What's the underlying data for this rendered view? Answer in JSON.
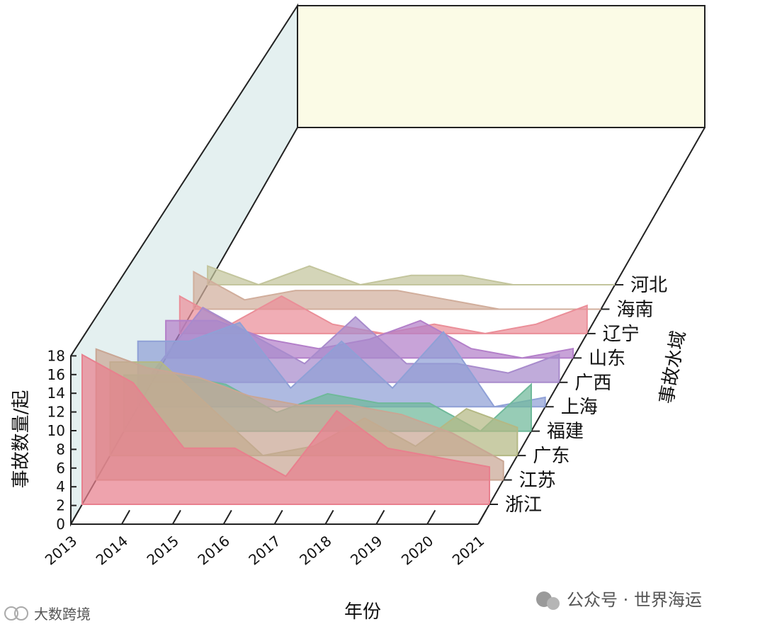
{
  "chart_data": {
    "type": "area",
    "layout": "3d-waterfall",
    "xlabel": "年份",
    "ylabel": "事故数量/起",
    "zlabel": "事故水域",
    "x": [
      "2013",
      "2014",
      "2015",
      "2016",
      "2017",
      "2018",
      "2019",
      "2020",
      "2021"
    ],
    "y_ticks": [
      "0",
      "2",
      "4",
      "6",
      "8",
      "10",
      "12",
      "14",
      "16",
      "18"
    ],
    "ylim": [
      0,
      18
    ],
    "grid": false,
    "series": [
      {
        "name": "浙江",
        "color": "#e8808e",
        "values": [
          16,
          13,
          6,
          6,
          3,
          10,
          6,
          5,
          4
        ]
      },
      {
        "name": "江苏",
        "color": "#c9a694",
        "values": [
          14,
          12,
          11,
          9,
          8,
          8,
          7,
          5,
          2
        ]
      },
      {
        "name": "广东",
        "color": "#b4b884",
        "values": [
          10,
          10,
          5,
          0,
          1,
          4,
          1,
          5,
          3
        ]
      },
      {
        "name": "福建",
        "color": "#6fb99a",
        "values": [
          6,
          6,
          5,
          2,
          4,
          3,
          3,
          0,
          5
        ]
      },
      {
        "name": "上海",
        "color": "#8fa0d6",
        "values": [
          7,
          7,
          9,
          2,
          7,
          2,
          8,
          0,
          1
        ]
      },
      {
        "name": "广西",
        "color": "#a88bcc",
        "values": [
          1,
          8,
          5,
          2,
          7,
          2,
          2,
          1,
          3
        ]
      },
      {
        "name": "山东",
        "color": "#b37fc9",
        "values": [
          4,
          4,
          2,
          1,
          2,
          4,
          1,
          0,
          1
        ]
      },
      {
        "name": "辽宁",
        "color": "#ea8e98",
        "values": [
          4,
          1,
          4,
          1,
          0,
          1,
          0,
          1,
          3
        ]
      },
      {
        "name": "海南",
        "color": "#d1ae9c",
        "values": [
          4,
          1,
          2,
          2,
          2,
          1,
          0,
          0,
          0
        ]
      },
      {
        "name": "河北",
        "color": "#c3c59d",
        "values": [
          2,
          0,
          2,
          0,
          1,
          1,
          0,
          0,
          0
        ]
      }
    ],
    "colors": {
      "back_wall": "#fbfbe6",
      "side_wall": "#e4f0f0",
      "frame": "#222222"
    }
  },
  "watermark": {
    "wechat": "公众号 · 世界海运",
    "brand": "大数跨境"
  }
}
